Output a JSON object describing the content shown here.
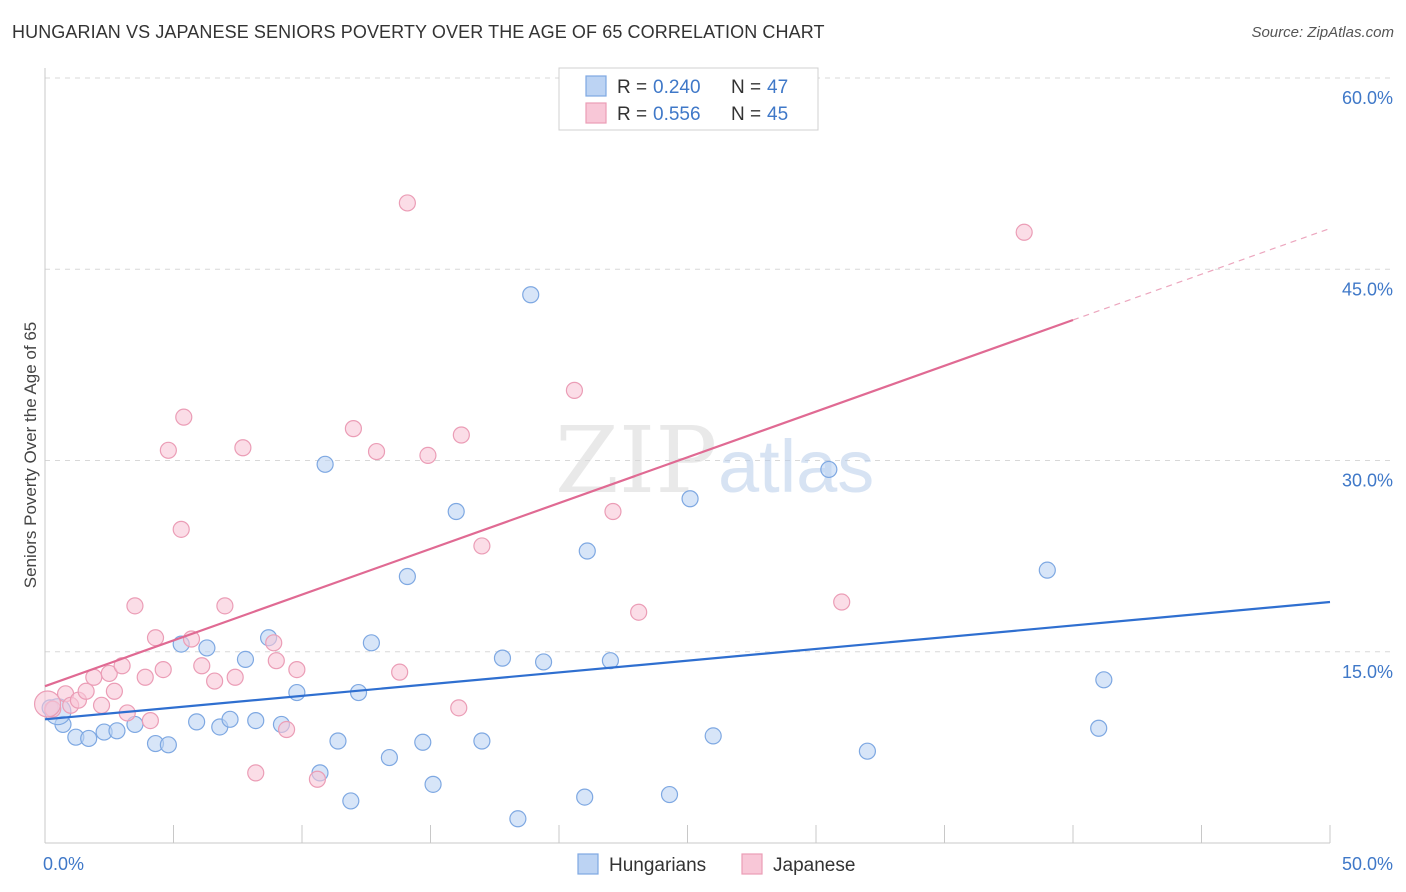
{
  "title": "HUNGARIAN VS JAPANESE SENIORS POVERTY OVER THE AGE OF 65 CORRELATION CHART",
  "source": "Source: ZipAtlas.com",
  "watermark": {
    "zip": "ZIP",
    "atlas": "atlas"
  },
  "colors": {
    "blue_fill": "#bcd3f3",
    "blue_stroke": "#7ea8e2",
    "blue_line": "#2f6fd0",
    "pink_fill": "#f8c7d7",
    "pink_stroke": "#eb9db6",
    "pink_line": "#e06a93",
    "grid": "#d8d8d8",
    "tick_label": "#3f78c8"
  },
  "legend": {
    "series": [
      {
        "r_label": "R = ",
        "r_value": "0.240",
        "n_label": "N = ",
        "n_value": "47"
      },
      {
        "r_label": "R = ",
        "r_value": "0.556",
        "n_label": "N = ",
        "n_value": "45"
      }
    ]
  },
  "chart_data": {
    "type": "scatter",
    "title": "HUNGARIAN VS JAPANESE SENIORS POVERTY OVER THE AGE OF 65 CORRELATION CHART",
    "xlabel": "",
    "ylabel": "Seniors Poverty Over the Age of 65",
    "xlim": [
      0,
      50
    ],
    "ylim": [
      0,
      60
    ],
    "x_tick_labels": [
      "0.0%",
      "50.0%"
    ],
    "y_ticks": [
      15,
      30,
      45,
      60
    ],
    "y_tick_labels": [
      "15.0%",
      "30.0%",
      "45.0%",
      "60.0%"
    ],
    "series": [
      {
        "name": "Hungarians",
        "color": "#bcd3f3",
        "R": 0.24,
        "N": 47,
        "trend": {
          "x0": 0,
          "y0": 9.7,
          "x1": 50,
          "y1": 18.9,
          "dashed_from": null
        },
        "points": [
          [
            0.2,
            10.6
          ],
          [
            0.7,
            9.3
          ],
          [
            1.2,
            8.3
          ],
          [
            1.7,
            8.2
          ],
          [
            2.3,
            8.7
          ],
          [
            2.8,
            8.8
          ],
          [
            3.5,
            9.3
          ],
          [
            4.3,
            7.8
          ],
          [
            4.8,
            7.7
          ],
          [
            5.3,
            15.6
          ],
          [
            5.9,
            9.5
          ],
          [
            6.3,
            15.3
          ],
          [
            6.8,
            9.1
          ],
          [
            7.2,
            9.7
          ],
          [
            7.8,
            14.4
          ],
          [
            8.2,
            9.6
          ],
          [
            8.7,
            16.1
          ],
          [
            9.2,
            9.3
          ],
          [
            9.8,
            11.8
          ],
          [
            10.7,
            5.5
          ],
          [
            10.9,
            29.7
          ],
          [
            11.4,
            8.0
          ],
          [
            11.9,
            3.3
          ],
          [
            12.2,
            11.8
          ],
          [
            12.7,
            15.7
          ],
          [
            13.4,
            6.7
          ],
          [
            14.1,
            20.9
          ],
          [
            14.7,
            7.9
          ],
          [
            15.1,
            4.6
          ],
          [
            16.0,
            26.0
          ],
          [
            17.0,
            8.0
          ],
          [
            17.8,
            14.5
          ],
          [
            18.4,
            1.9
          ],
          [
            18.9,
            43.0
          ],
          [
            19.4,
            14.2
          ],
          [
            21.0,
            3.6
          ],
          [
            21.1,
            22.9
          ],
          [
            22.0,
            14.3
          ],
          [
            24.3,
            3.8
          ],
          [
            25.1,
            27.0
          ],
          [
            26.0,
            8.4
          ],
          [
            30.5,
            29.3
          ],
          [
            32.0,
            7.2
          ],
          [
            39.0,
            21.4
          ],
          [
            41.0,
            9.0
          ],
          [
            41.2,
            12.8
          ],
          [
            0.5,
            10.3
          ]
        ]
      },
      {
        "name": "Japanese",
        "color": "#f8c7d7",
        "R": 0.556,
        "N": 45,
        "trend": {
          "x0": 0,
          "y0": 12.3,
          "x1": 50,
          "y1": 48.2,
          "dashed_from": 40.0
        },
        "points": [
          [
            0.3,
            10.5
          ],
          [
            0.8,
            11.7
          ],
          [
            1.0,
            10.8
          ],
          [
            1.3,
            11.2
          ],
          [
            1.6,
            11.9
          ],
          [
            1.9,
            13.0
          ],
          [
            2.2,
            10.8
          ],
          [
            2.5,
            13.3
          ],
          [
            2.7,
            11.9
          ],
          [
            3.0,
            13.9
          ],
          [
            3.2,
            10.2
          ],
          [
            3.5,
            18.6
          ],
          [
            3.9,
            13.0
          ],
          [
            4.1,
            9.6
          ],
          [
            4.3,
            16.1
          ],
          [
            4.6,
            13.6
          ],
          [
            4.8,
            30.8
          ],
          [
            5.3,
            24.6
          ],
          [
            5.4,
            33.4
          ],
          [
            5.7,
            16.0
          ],
          [
            6.1,
            13.9
          ],
          [
            6.6,
            12.7
          ],
          [
            7.0,
            18.6
          ],
          [
            7.4,
            13.0
          ],
          [
            7.7,
            31.0
          ],
          [
            8.2,
            5.5
          ],
          [
            8.9,
            15.7
          ],
          [
            9.0,
            14.3
          ],
          [
            9.4,
            8.9
          ],
          [
            9.8,
            13.6
          ],
          [
            10.6,
            5.0
          ],
          [
            12.0,
            32.5
          ],
          [
            12.9,
            30.7
          ],
          [
            13.8,
            13.4
          ],
          [
            14.1,
            50.2
          ],
          [
            14.9,
            30.4
          ],
          [
            16.1,
            10.6
          ],
          [
            16.2,
            32.0
          ],
          [
            17.0,
            23.3
          ],
          [
            20.6,
            35.5
          ],
          [
            22.1,
            26.0
          ],
          [
            23.1,
            18.1
          ],
          [
            31.0,
            18.9
          ],
          [
            38.1,
            47.9
          ],
          [
            0.1,
            10.9
          ]
        ]
      }
    ]
  },
  "bottom_legend": [
    "Hungarians",
    "Japanese"
  ]
}
